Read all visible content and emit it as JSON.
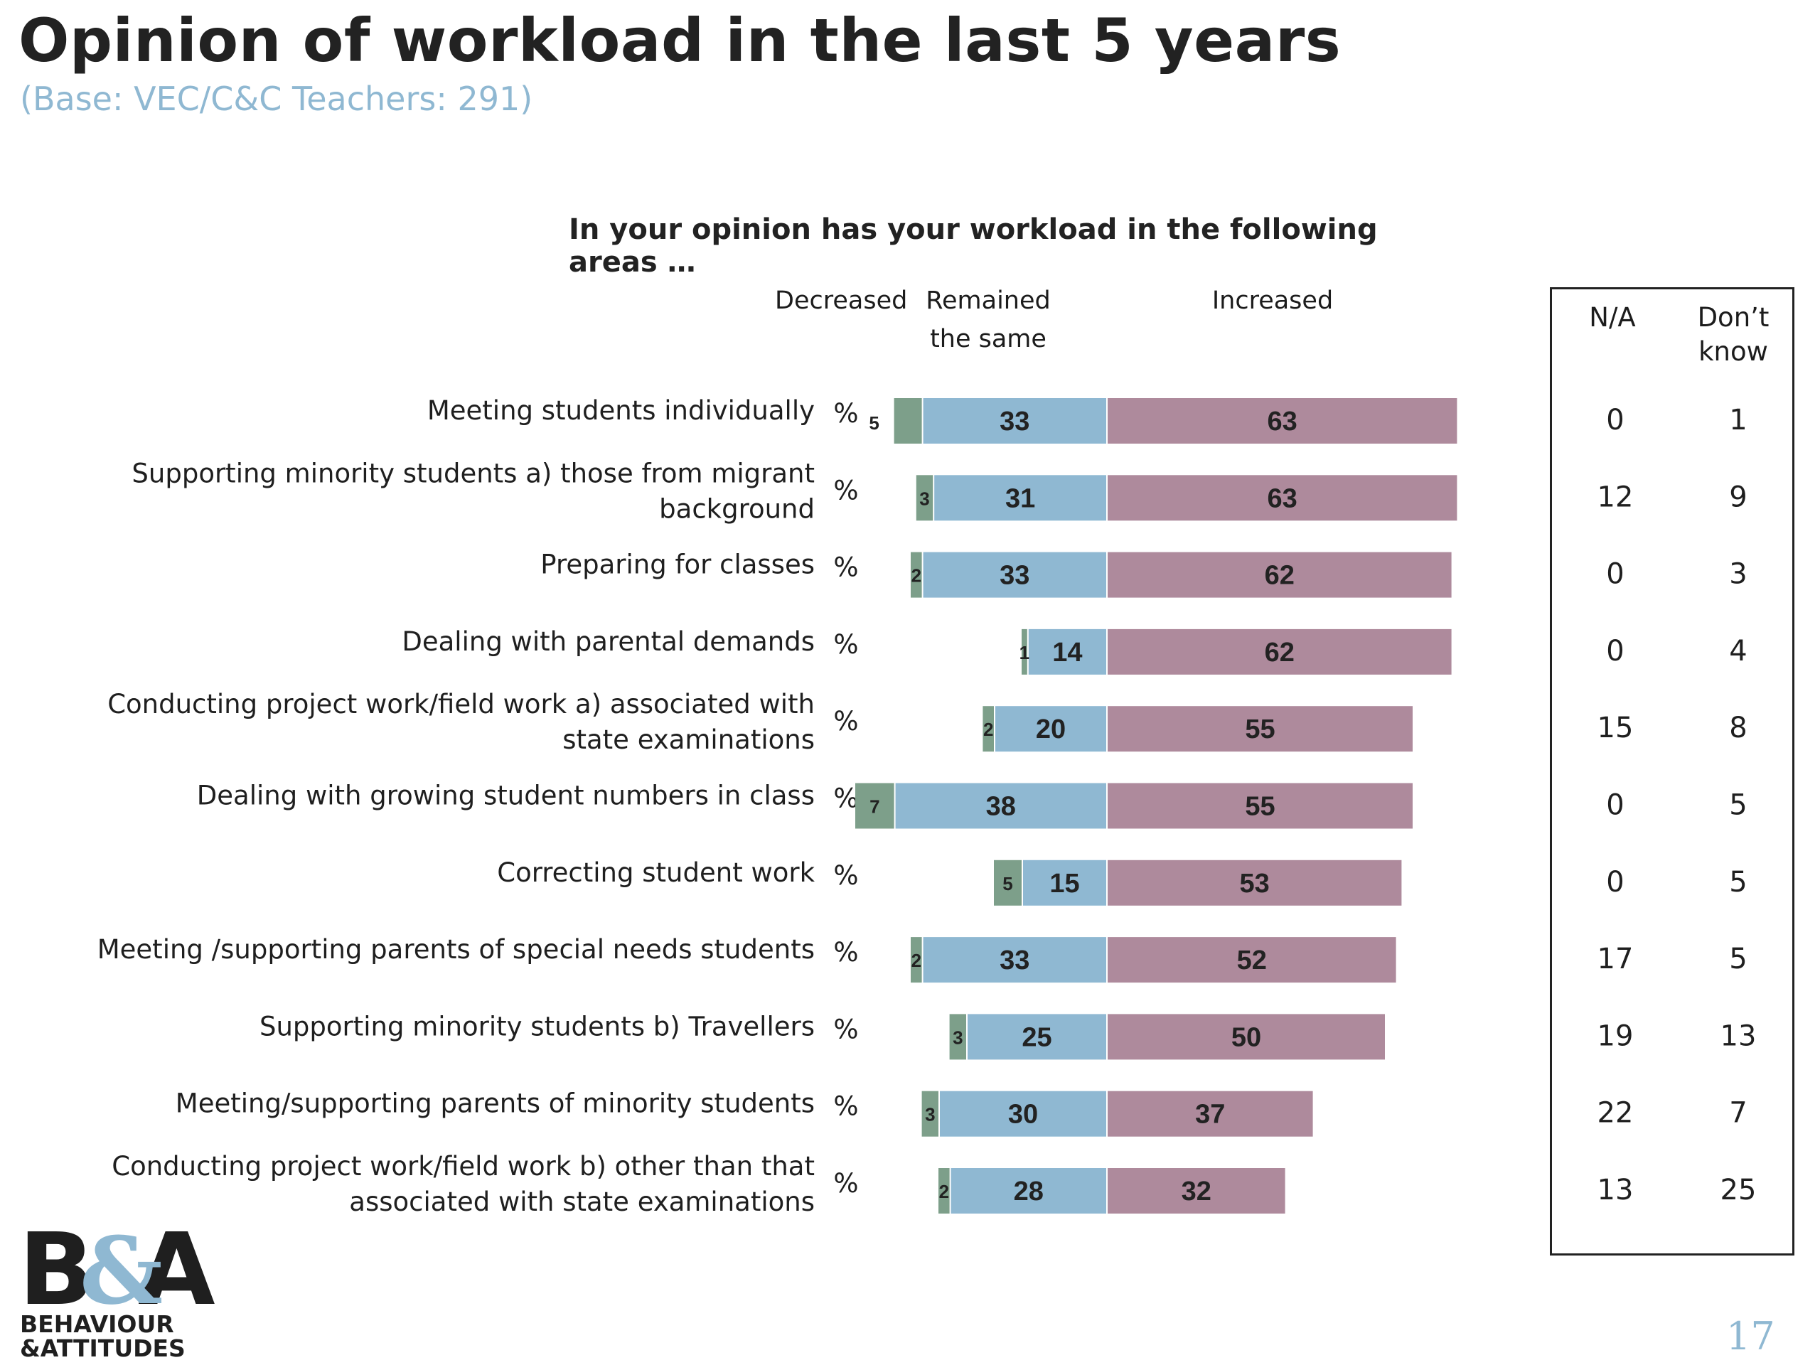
{
  "title": "Opinion of workload in the last 5 years",
  "subtitle": "(Base: VEC/C&C Teachers: 291)",
  "question": "In your opinion has your workload in the following areas …",
  "column_headers": {
    "decreased": "Decreased",
    "remained_line1": "Remained",
    "remained_line2": "the same",
    "increased": "Increased",
    "na": "N/A",
    "dont_know_line1": "Don’t",
    "dont_know_line2": "know"
  },
  "percent_symbol": "%",
  "colors": {
    "decreased": "#7d9f8a",
    "remained": "#8fb8d2",
    "increased": "#ae8a9c",
    "subtitle": "#8fb8d2"
  },
  "logo": {
    "mark": "B&A",
    "line1": "BEHAVIOUR",
    "line2": "&ATTITUDES"
  },
  "page_number": "17",
  "chart_data": {
    "type": "bar",
    "orientation": "horizontal-diverging",
    "categories": [
      [
        "Meeting students individually"
      ],
      [
        "Supporting minority students  a) those from migrant",
        "background"
      ],
      [
        "Preparing for classes"
      ],
      [
        "Dealing with parental demands"
      ],
      [
        "Conducting project work/field work a) associated with",
        "state examinations"
      ],
      [
        "Dealing with growing student numbers in class"
      ],
      [
        "Correcting student work"
      ],
      [
        "Meeting /supporting parents of special needs students"
      ],
      [
        "Supporting minority students  b) Travellers"
      ],
      [
        "Meeting/supporting parents of minority students"
      ],
      [
        "Conducting project work/field work b) other than that",
        "associated with state examinations"
      ]
    ],
    "series": [
      {
        "name": "Decreased",
        "values": [
          5,
          3,
          2,
          1,
          2,
          7,
          5,
          2,
          3,
          3,
          2
        ]
      },
      {
        "name": "Remained the same",
        "values": [
          33,
          31,
          33,
          14,
          20,
          38,
          15,
          33,
          25,
          30,
          28
        ]
      },
      {
        "name": "Increased",
        "values": [
          63,
          63,
          62,
          62,
          55,
          55,
          53,
          52,
          50,
          37,
          32
        ]
      }
    ],
    "side_table": {
      "na": [
        0,
        12,
        0,
        0,
        15,
        0,
        0,
        17,
        19,
        22,
        13
      ],
      "dont_know": [
        1,
        9,
        3,
        4,
        8,
        5,
        5,
        5,
        13,
        7,
        25
      ]
    }
  }
}
